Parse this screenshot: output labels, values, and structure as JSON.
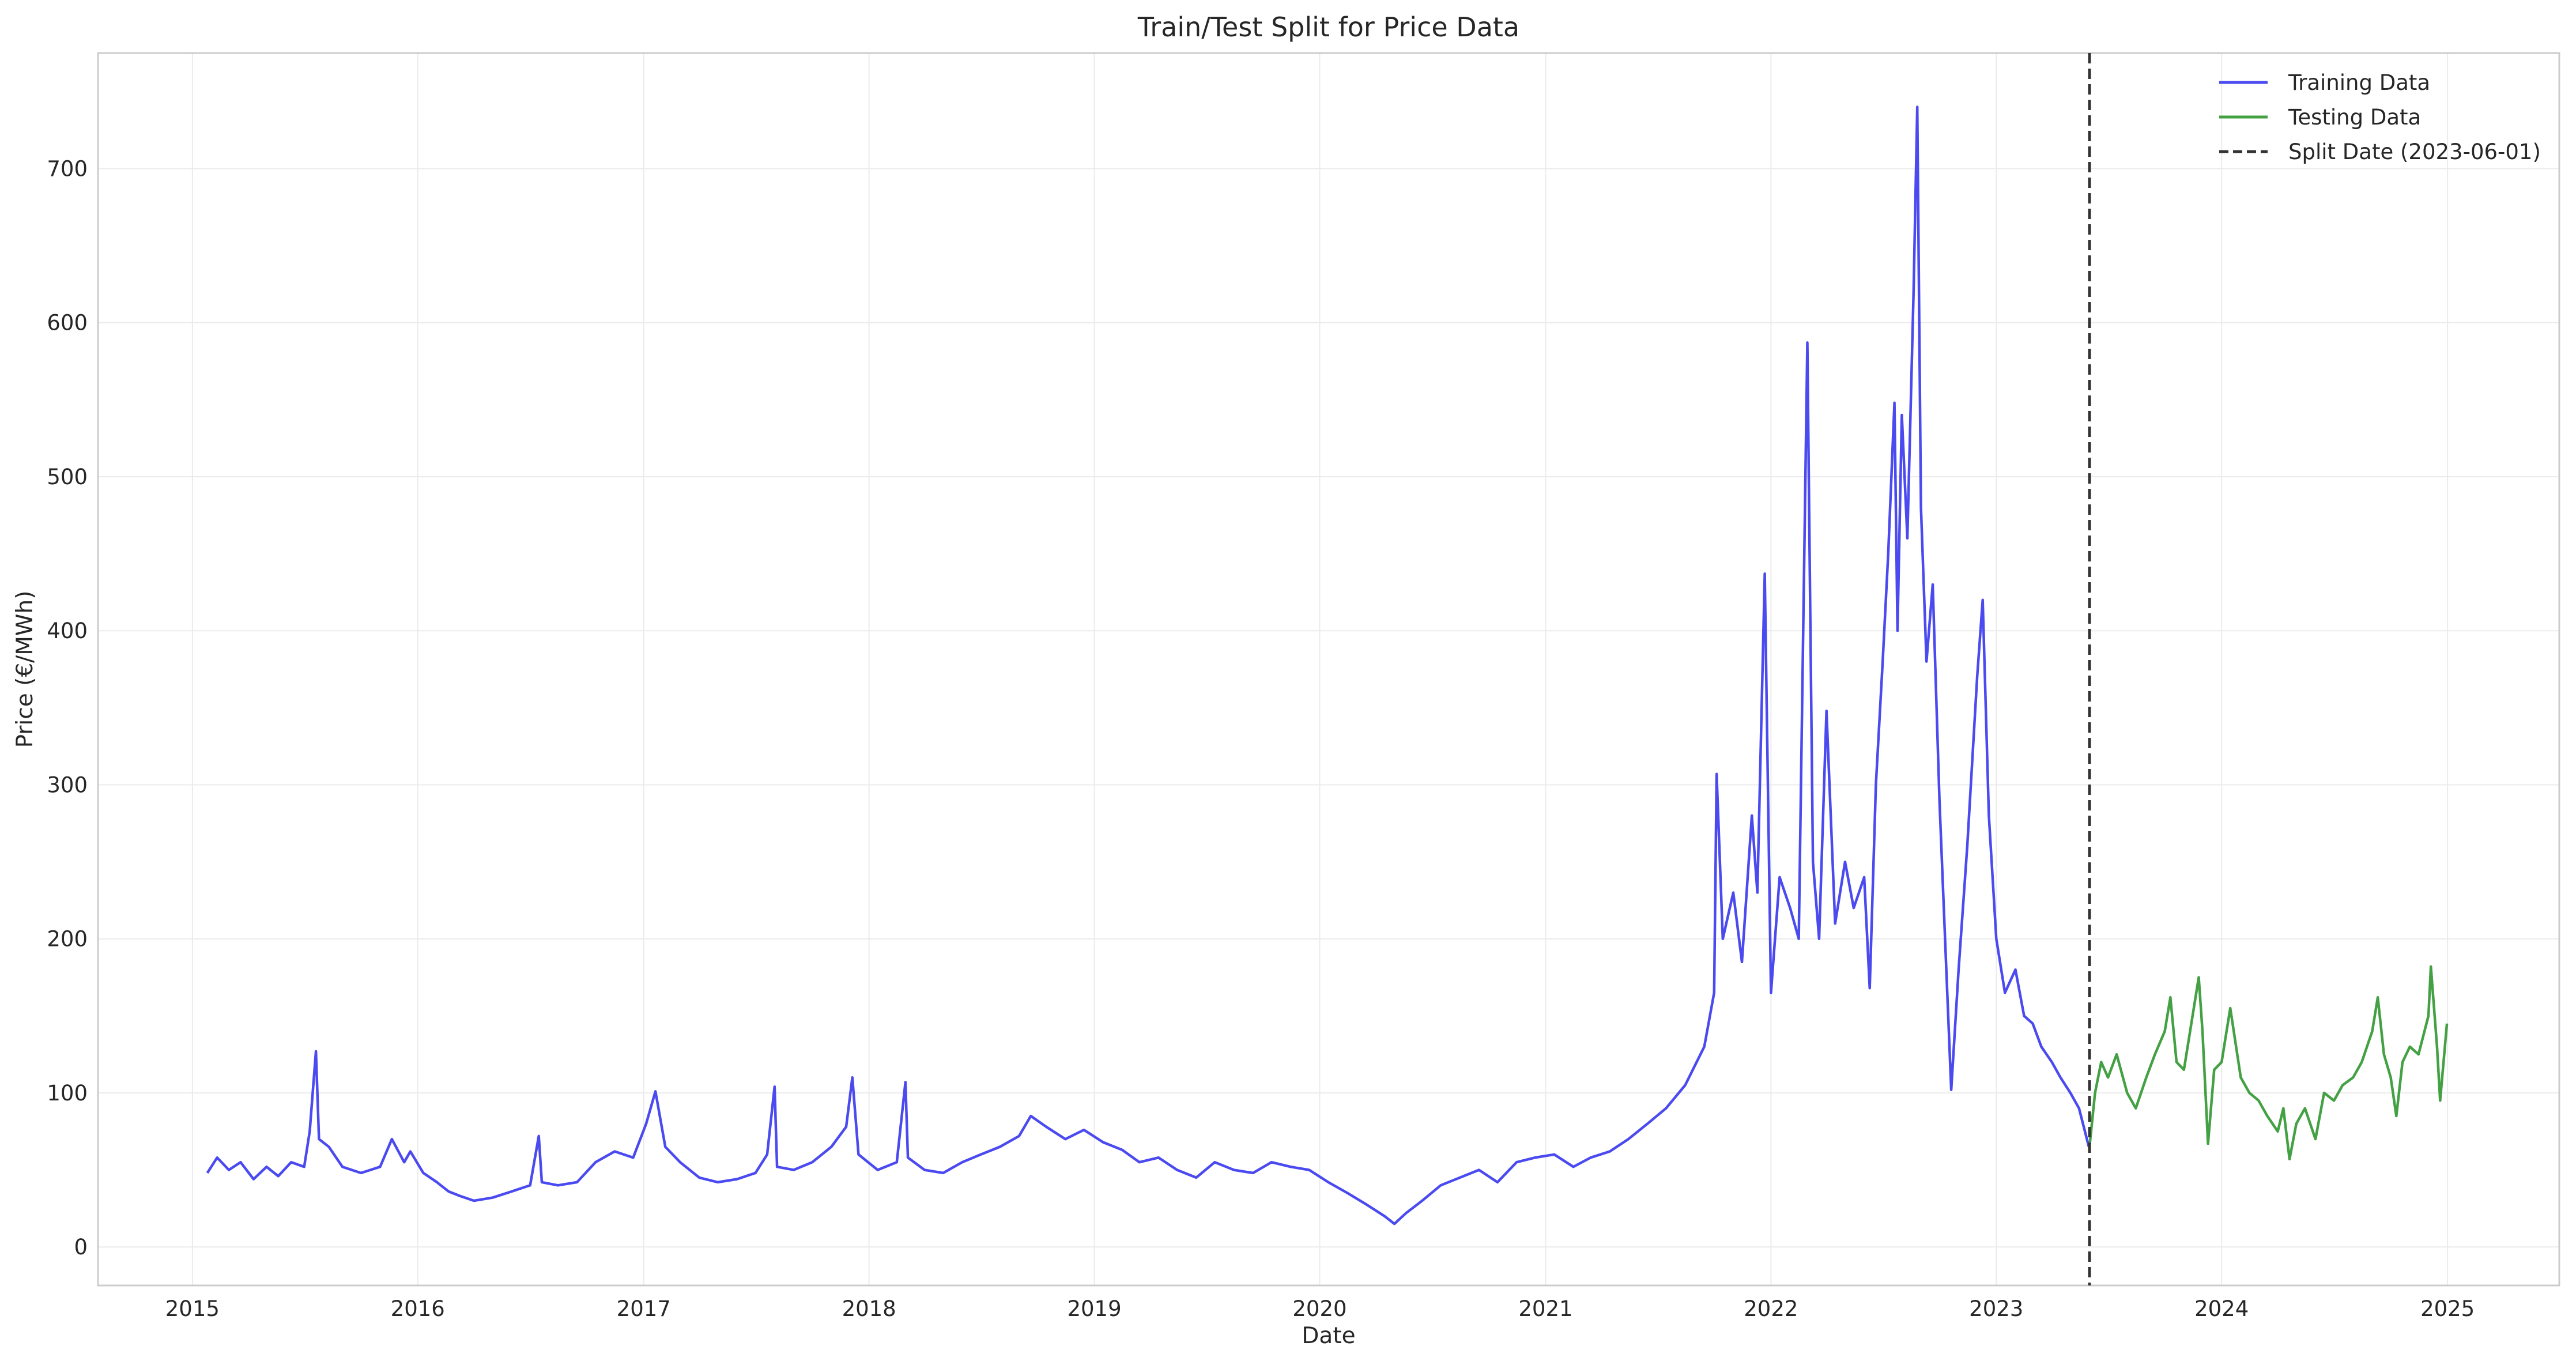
{
  "chart_data": {
    "type": "line",
    "title": "Train/Test Split for Price Data",
    "xlabel": "Date",
    "ylabel": "Price (€/MWh)",
    "xlim": [
      "2014-08-01",
      "2025-07-01"
    ],
    "ylim": [
      -25,
      775
    ],
    "x_ticks": [
      "2015",
      "2016",
      "2017",
      "2018",
      "2019",
      "2020",
      "2021",
      "2022",
      "2023",
      "2024",
      "2025"
    ],
    "y_ticks": [
      0,
      100,
      200,
      300,
      400,
      500,
      600,
      700
    ],
    "grid": true,
    "legend_position": "top-right",
    "series": [
      {
        "name": "Training Data",
        "color": "#4a4af0",
        "points": [
          [
            "2015-01-25",
            48
          ],
          [
            "2015-02-10",
            58
          ],
          [
            "2015-03-01",
            50
          ],
          [
            "2015-03-20",
            55
          ],
          [
            "2015-04-10",
            44
          ],
          [
            "2015-05-01",
            52
          ],
          [
            "2015-05-20",
            46
          ],
          [
            "2015-06-10",
            55
          ],
          [
            "2015-07-01",
            52
          ],
          [
            "2015-07-10",
            75
          ],
          [
            "2015-07-20",
            127
          ],
          [
            "2015-07-25",
            70
          ],
          [
            "2015-08-10",
            65
          ],
          [
            "2015-09-01",
            52
          ],
          [
            "2015-10-01",
            48
          ],
          [
            "2015-11-01",
            52
          ],
          [
            "2015-11-20",
            70
          ],
          [
            "2015-12-10",
            55
          ],
          [
            "2015-12-20",
            62
          ],
          [
            "2016-01-10",
            48
          ],
          [
            "2016-02-01",
            42
          ],
          [
            "2016-02-20",
            36
          ],
          [
            "2016-03-10",
            33
          ],
          [
            "2016-04-01",
            30
          ],
          [
            "2016-05-01",
            32
          ],
          [
            "2016-06-01",
            36
          ],
          [
            "2016-07-01",
            40
          ],
          [
            "2016-07-15",
            72
          ],
          [
            "2016-07-20",
            42
          ],
          [
            "2016-08-15",
            40
          ],
          [
            "2016-09-15",
            42
          ],
          [
            "2016-10-15",
            55
          ],
          [
            "2016-11-15",
            62
          ],
          [
            "2016-12-15",
            58
          ],
          [
            "2017-01-05",
            80
          ],
          [
            "2017-01-20",
            101
          ],
          [
            "2017-02-05",
            65
          ],
          [
            "2017-03-01",
            55
          ],
          [
            "2017-04-01",
            45
          ],
          [
            "2017-05-01",
            42
          ],
          [
            "2017-06-01",
            44
          ],
          [
            "2017-07-01",
            48
          ],
          [
            "2017-07-20",
            60
          ],
          [
            "2017-08-01",
            104
          ],
          [
            "2017-08-05",
            52
          ],
          [
            "2017-09-01",
            50
          ],
          [
            "2017-10-01",
            55
          ],
          [
            "2017-11-01",
            65
          ],
          [
            "2017-11-25",
            78
          ],
          [
            "2017-12-05",
            110
          ],
          [
            "2017-12-15",
            60
          ],
          [
            "2018-01-15",
            50
          ],
          [
            "2018-02-15",
            55
          ],
          [
            "2018-03-01",
            107
          ],
          [
            "2018-03-05",
            58
          ],
          [
            "2018-04-01",
            50
          ],
          [
            "2018-05-01",
            48
          ],
          [
            "2018-06-01",
            55
          ],
          [
            "2018-07-01",
            60
          ],
          [
            "2018-08-01",
            65
          ],
          [
            "2018-09-01",
            72
          ],
          [
            "2018-09-20",
            85
          ],
          [
            "2018-10-15",
            78
          ],
          [
            "2018-11-15",
            70
          ],
          [
            "2018-12-15",
            76
          ],
          [
            "2019-01-15",
            68
          ],
          [
            "2019-02-15",
            63
          ],
          [
            "2019-03-15",
            55
          ],
          [
            "2019-04-15",
            58
          ],
          [
            "2019-05-15",
            50
          ],
          [
            "2019-06-15",
            45
          ],
          [
            "2019-07-15",
            55
          ],
          [
            "2019-08-15",
            50
          ],
          [
            "2019-09-15",
            48
          ],
          [
            "2019-10-15",
            55
          ],
          [
            "2019-11-15",
            52
          ],
          [
            "2019-12-15",
            50
          ],
          [
            "2020-01-15",
            42
          ],
          [
            "2020-02-15",
            35
          ],
          [
            "2020-03-15",
            28
          ],
          [
            "2020-04-15",
            20
          ],
          [
            "2020-05-01",
            15
          ],
          [
            "2020-05-20",
            22
          ],
          [
            "2020-06-15",
            30
          ],
          [
            "2020-07-15",
            40
          ],
          [
            "2020-08-15",
            45
          ],
          [
            "2020-09-15",
            50
          ],
          [
            "2020-10-15",
            42
          ],
          [
            "2020-11-15",
            55
          ],
          [
            "2020-12-15",
            58
          ],
          [
            "2021-01-15",
            60
          ],
          [
            "2021-02-15",
            52
          ],
          [
            "2021-03-15",
            58
          ],
          [
            "2021-04-15",
            62
          ],
          [
            "2021-05-15",
            70
          ],
          [
            "2021-06-15",
            80
          ],
          [
            "2021-07-15",
            90
          ],
          [
            "2021-08-15",
            105
          ],
          [
            "2021-09-15",
            130
          ],
          [
            "2021-10-01",
            165
          ],
          [
            "2021-10-05",
            307
          ],
          [
            "2021-10-15",
            200
          ],
          [
            "2021-11-01",
            230
          ],
          [
            "2021-11-15",
            185
          ],
          [
            "2021-12-01",
            280
          ],
          [
            "2021-12-10",
            230
          ],
          [
            "2021-12-22",
            437
          ],
          [
            "2022-01-01",
            165
          ],
          [
            "2022-01-15",
            240
          ],
          [
            "2022-02-01",
            220
          ],
          [
            "2022-02-15",
            200
          ],
          [
            "2022-03-01",
            587
          ],
          [
            "2022-03-10",
            250
          ],
          [
            "2022-03-20",
            200
          ],
          [
            "2022-04-01",
            348
          ],
          [
            "2022-04-15",
            210
          ],
          [
            "2022-05-01",
            250
          ],
          [
            "2022-05-15",
            220
          ],
          [
            "2022-06-01",
            240
          ],
          [
            "2022-06-10",
            168
          ],
          [
            "2022-06-20",
            300
          ],
          [
            "2022-07-01",
            380
          ],
          [
            "2022-07-10",
            450
          ],
          [
            "2022-07-20",
            548
          ],
          [
            "2022-07-25",
            400
          ],
          [
            "2022-08-01",
            540
          ],
          [
            "2022-08-10",
            460
          ],
          [
            "2022-08-20",
            620
          ],
          [
            "2022-08-26",
            740
          ],
          [
            "2022-09-01",
            480
          ],
          [
            "2022-09-10",
            380
          ],
          [
            "2022-09-20",
            430
          ],
          [
            "2022-10-01",
            290
          ],
          [
            "2022-10-10",
            200
          ],
          [
            "2022-10-20",
            102
          ],
          [
            "2022-11-01",
            180
          ],
          [
            "2022-11-15",
            260
          ],
          [
            "2022-12-01",
            370
          ],
          [
            "2022-12-10",
            420
          ],
          [
            "2022-12-20",
            280
          ],
          [
            "2023-01-01",
            200
          ],
          [
            "2023-01-15",
            165
          ],
          [
            "2023-02-01",
            180
          ],
          [
            "2023-02-15",
            150
          ],
          [
            "2023-03-01",
            145
          ],
          [
            "2023-03-15",
            130
          ],
          [
            "2023-04-01",
            120
          ],
          [
            "2023-04-15",
            110
          ],
          [
            "2023-05-01",
            100
          ],
          [
            "2023-05-15",
            90
          ],
          [
            "2023-05-31",
            65
          ]
        ]
      },
      {
        "name": "Testing Data",
        "color": "#43a043",
        "points": [
          [
            "2023-06-01",
            65
          ],
          [
            "2023-06-10",
            100
          ],
          [
            "2023-06-20",
            120
          ],
          [
            "2023-07-01",
            110
          ],
          [
            "2023-07-15",
            125
          ],
          [
            "2023-08-01",
            100
          ],
          [
            "2023-08-15",
            90
          ],
          [
            "2023-09-01",
            110
          ],
          [
            "2023-09-15",
            125
          ],
          [
            "2023-10-01",
            140
          ],
          [
            "2023-10-10",
            162
          ],
          [
            "2023-10-20",
            120
          ],
          [
            "2023-11-01",
            115
          ],
          [
            "2023-11-15",
            150
          ],
          [
            "2023-11-25",
            175
          ],
          [
            "2023-12-01",
            140
          ],
          [
            "2023-12-10",
            67
          ],
          [
            "2023-12-20",
            115
          ],
          [
            "2024-01-01",
            120
          ],
          [
            "2024-01-15",
            155
          ],
          [
            "2024-02-01",
            110
          ],
          [
            "2024-02-15",
            100
          ],
          [
            "2024-03-01",
            95
          ],
          [
            "2024-03-15",
            85
          ],
          [
            "2024-04-01",
            75
          ],
          [
            "2024-04-10",
            90
          ],
          [
            "2024-04-20",
            57
          ],
          [
            "2024-05-01",
            80
          ],
          [
            "2024-05-15",
            90
          ],
          [
            "2024-06-01",
            70
          ],
          [
            "2024-06-15",
            100
          ],
          [
            "2024-07-01",
            95
          ],
          [
            "2024-07-15",
            105
          ],
          [
            "2024-08-01",
            110
          ],
          [
            "2024-08-15",
            120
          ],
          [
            "2024-09-01",
            140
          ],
          [
            "2024-09-10",
            162
          ],
          [
            "2024-09-20",
            125
          ],
          [
            "2024-10-01",
            110
          ],
          [
            "2024-10-10",
            85
          ],
          [
            "2024-10-20",
            120
          ],
          [
            "2024-11-01",
            130
          ],
          [
            "2024-11-15",
            125
          ],
          [
            "2024-12-01",
            150
          ],
          [
            "2024-12-05",
            182
          ],
          [
            "2024-12-15",
            130
          ],
          [
            "2024-12-20",
            95
          ],
          [
            "2024-12-31",
            145
          ]
        ]
      }
    ],
    "vline": {
      "date": "2023-06-01",
      "color": "#333333"
    },
    "legend": [
      {
        "label": "Training Data",
        "color": "#4a4af0",
        "style": "solid"
      },
      {
        "label": "Testing Data",
        "color": "#43a043",
        "style": "solid"
      },
      {
        "label": "Split Date (2023-06-01)",
        "color": "#333333",
        "style": "dashed"
      }
    ]
  }
}
